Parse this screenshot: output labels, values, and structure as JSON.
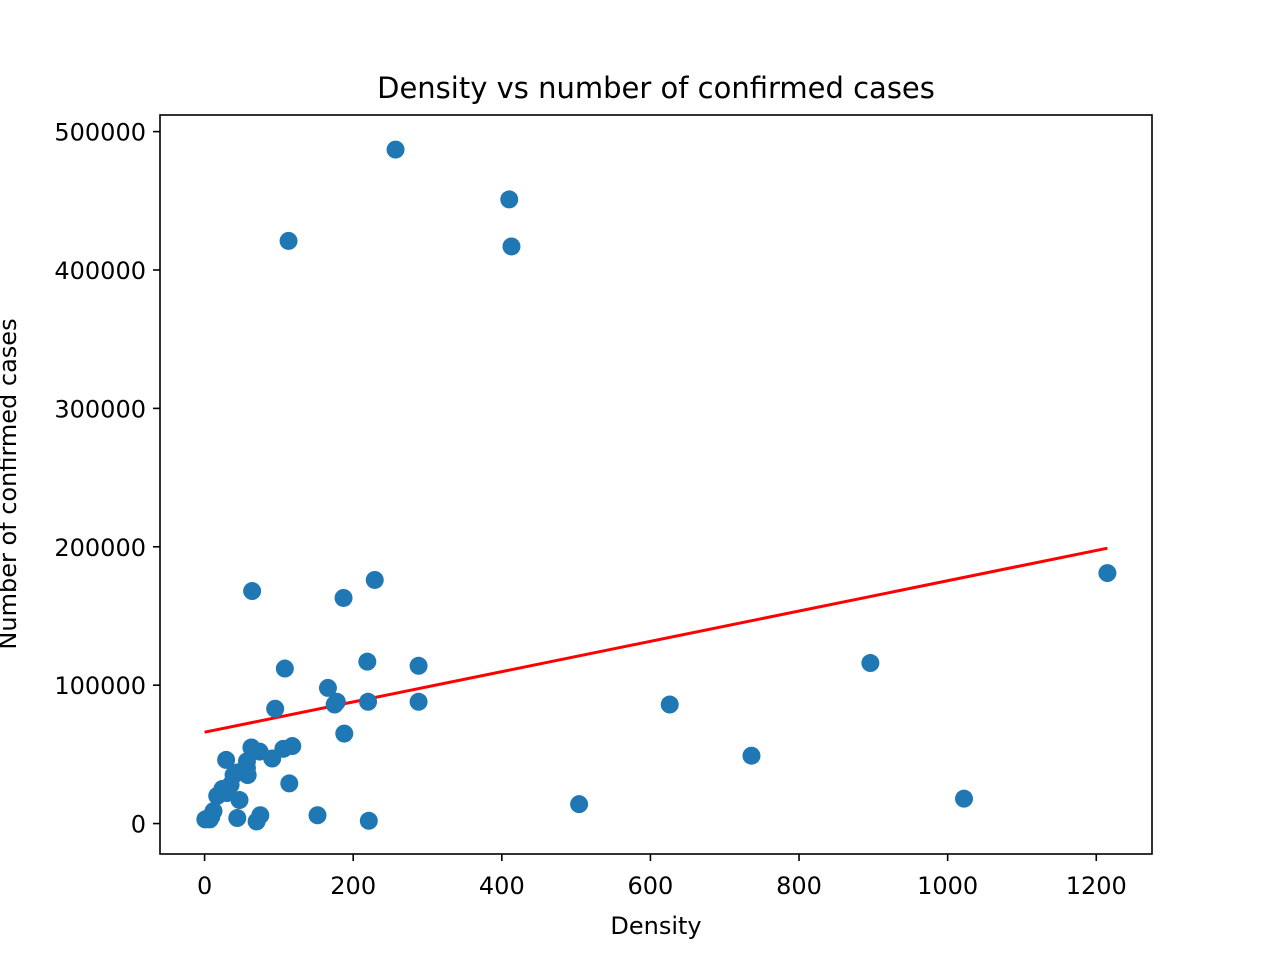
{
  "chart_data": {
    "type": "scatter",
    "title": "Density vs number of confirmed cases",
    "xlabel": "Density",
    "ylabel": "Number of confirmed cases",
    "xlim": [
      -60,
      1275
    ],
    "ylim": [
      -22000,
      512000
    ],
    "x_ticks": [
      0,
      200,
      400,
      600,
      800,
      1000,
      1200
    ],
    "y_ticks": [
      0,
      100000,
      200000,
      300000,
      400000,
      500000
    ],
    "x_tick_labels": [
      "0",
      "200",
      "400",
      "600",
      "800",
      "1000",
      "1200"
    ],
    "y_tick_labels": [
      "0",
      "100000",
      "200000",
      "300000",
      "400000",
      "500000"
    ],
    "grid": false,
    "point_color": "#1f77b4",
    "series": [
      {
        "x": [
          257,
          410,
          113,
          413,
          1215,
          896,
          626,
          736,
          1022,
          504,
          64,
          229,
          187,
          219,
          108,
          288,
          166,
          178,
          175,
          95,
          220,
          288,
          188,
          118,
          106,
          74,
          63,
          29,
          91,
          57,
          57,
          45,
          39,
          35,
          24,
          17,
          114,
          152,
          221,
          75,
          70,
          44,
          12,
          9,
          7,
          3,
          1,
          30,
          58,
          47
        ],
        "y": [
          487000,
          451000,
          421000,
          417000,
          181000,
          116000,
          86000,
          49000,
          18000,
          14000,
          168000,
          176000,
          163000,
          117000,
          112000,
          114000,
          98000,
          88000,
          86000,
          83000,
          88000,
          88000,
          65000,
          56000,
          54000,
          52000,
          55000,
          46000,
          47000,
          45000,
          40000,
          37000,
          35000,
          28000,
          25000,
          20000,
          29000,
          6000,
          2000,
          6000,
          1500,
          4000,
          9000,
          5000,
          3000,
          3500,
          3000,
          22000,
          35000,
          17000
        ]
      }
    ],
    "trend_line": {
      "color": "#ff0000",
      "x": [
        0,
        1215
      ],
      "y": [
        66000,
        199000
      ]
    }
  }
}
